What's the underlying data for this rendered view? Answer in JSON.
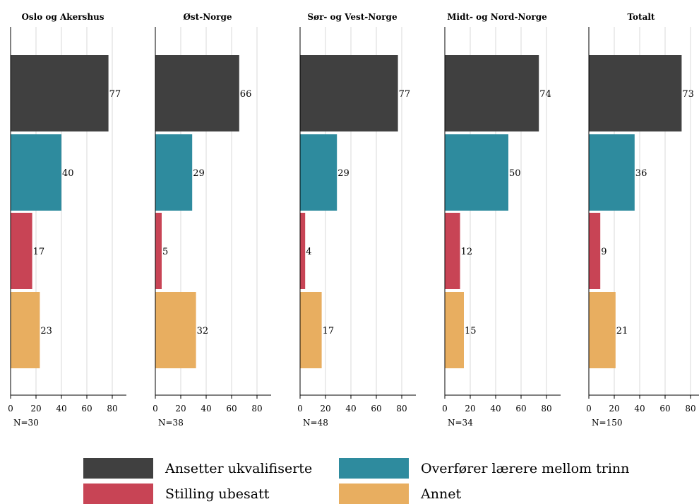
{
  "chart_data": {
    "type": "bar",
    "orientation": "horizontal",
    "xlim": [
      0,
      90
    ],
    "x_ticks": [
      0,
      20,
      40,
      60,
      80
    ],
    "grid": true,
    "legend_placement": "bottom",
    "series": [
      {
        "name": "Ansetter ukvalifiserte",
        "color": "#404040"
      },
      {
        "name": "Overfører lærere mellom trinn",
        "color": "#2e8b9e"
      },
      {
        "name": "Stilling ubesatt",
        "color": "#c84455"
      },
      {
        "name": "Annet",
        "color": "#e8ae60"
      }
    ],
    "panels": [
      {
        "title": "Oslo og Akershus",
        "n": "N=30",
        "values": [
          77,
          40,
          17,
          23
        ]
      },
      {
        "title": "Øst-Norge",
        "n": "N=38",
        "values": [
          66,
          29,
          5,
          32
        ]
      },
      {
        "title": "Sør- og Vest-Norge",
        "n": "N=48",
        "values": [
          77,
          29,
          4,
          17
        ]
      },
      {
        "title": "Midt- og Nord-Norge",
        "n": "N=34",
        "values": [
          74,
          50,
          12,
          15
        ]
      },
      {
        "title": "Totalt",
        "n": "N=150",
        "values": [
          73,
          36,
          9,
          21
        ]
      }
    ]
  }
}
